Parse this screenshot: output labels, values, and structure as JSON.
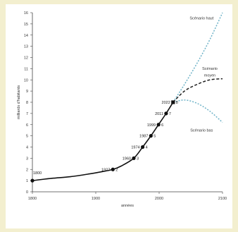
{
  "chart_data": {
    "type": "line",
    "title": "",
    "xlabel": "années",
    "ylabel": "milliards d'habitants",
    "xlim": [
      1800,
      2100
    ],
    "ylim": [
      0,
      16
    ],
    "x_ticks": [
      "1800",
      "1900",
      "2000",
      "2100"
    ],
    "y_ticks": [
      "0",
      "1",
      "2",
      "3",
      "4",
      "5",
      "6",
      "7",
      "8",
      "9",
      "10",
      "11",
      "12",
      "13",
      "14",
      "15",
      "16"
    ],
    "grid": false,
    "historical": {
      "x": [
        1800,
        1830,
        1860,
        1890,
        1910,
        1927,
        1940,
        1960,
        1974,
        1987,
        1999,
        2011,
        2022
      ],
      "y": [
        1.0,
        1.2,
        1.35,
        1.6,
        1.8,
        2.0,
        2.3,
        3.0,
        4.0,
        5.0,
        6.0,
        7.0,
        8.0
      ]
    },
    "milestones": [
      {
        "year": 1800,
        "pop": 1,
        "label": "1800"
      },
      {
        "year": 1927,
        "pop": 2,
        "label": "1927",
        "order": "2"
      },
      {
        "year": 1960,
        "pop": 3,
        "label": "1960",
        "order": "3"
      },
      {
        "year": 1974,
        "pop": 4,
        "label": "1974",
        "order": "4"
      },
      {
        "year": 1987,
        "pop": 5,
        "label": "1987",
        "order": "5"
      },
      {
        "year": 1999,
        "pop": 6,
        "label": "1999",
        "order": "6"
      },
      {
        "year": 2011,
        "pop": 7,
        "label": "2011",
        "order": "7"
      },
      {
        "year": 2022,
        "pop": 8,
        "label": "2022",
        "order": "8"
      }
    ],
    "series": [
      {
        "name": "Scénario haut",
        "color": "#6fb3c8",
        "dash": "dot",
        "x": [
          2022,
          2040,
          2060,
          2080,
          2100
        ],
        "y": [
          8.0,
          9.6,
          11.5,
          13.6,
          16.0
        ]
      },
      {
        "name": "Scénario moyen",
        "color": "#222222",
        "dash": "dash",
        "x": [
          2022,
          2040,
          2060,
          2080,
          2100
        ],
        "y": [
          8.0,
          9.0,
          9.6,
          10.0,
          10.1
        ]
      },
      {
        "name": "Scénario bas",
        "color": "#6fb3c8",
        "dash": "dot",
        "x": [
          2022,
          2040,
          2060,
          2080,
          2100
        ],
        "y": [
          8.0,
          8.2,
          7.9,
          7.2,
          6.2
        ]
      }
    ],
    "annotations": [
      {
        "text": "Scénario haut",
        "x": 2067,
        "y": 15.4
      },
      {
        "text": "Scénario",
        "x": 2080,
        "y": 10.9
      },
      {
        "text": "moyen",
        "x": 2080,
        "y": 10.3
      },
      {
        "text": "Scénario bas",
        "x": 2067,
        "y": 5.4
      }
    ],
    "colors": {
      "background": "#f3efcf",
      "panel": "#ffffff",
      "axis": "#444444",
      "line": "#111111",
      "scenario_alt": "#6fb3c8"
    }
  }
}
